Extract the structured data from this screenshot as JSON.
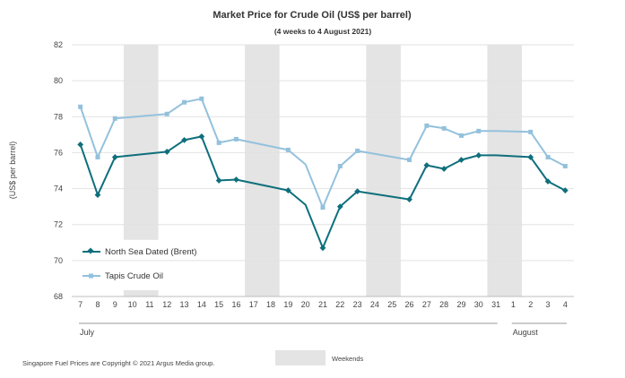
{
  "chart_data": {
    "type": "line",
    "title": "Market Price for Crude Oil  (US$  per barrel)",
    "subtitle": "(4 weeks to 4 August 2021)",
    "ylabel": "(US$ per barrel)",
    "ylim": [
      68,
      82
    ],
    "yticks": [
      68,
      70,
      72,
      74,
      76,
      78,
      80,
      82
    ],
    "grid": true,
    "legend_position": "bottom-left",
    "categories": [
      "7",
      "8",
      "9",
      "10",
      "11",
      "12",
      "13",
      "14",
      "15",
      "16",
      "17",
      "18",
      "19",
      "20",
      "21",
      "22",
      "23",
      "24",
      "25",
      "26",
      "27",
      "28",
      "29",
      "30",
      "31",
      "1",
      "2",
      "3",
      "4"
    ],
    "month_labels": [
      {
        "label": "July",
        "start": "7",
        "end": "31"
      },
      {
        "label": "August",
        "start": "1",
        "end": "4"
      }
    ],
    "weekend_bands": [
      [
        "10",
        "11"
      ],
      [
        "17",
        "18"
      ],
      [
        "24",
        "25"
      ],
      [
        "31",
        "1"
      ]
    ],
    "weekend_label": "Weekends",
    "series": [
      {
        "name": "North Sea Dated (Brent)",
        "color": "#0e6f7c",
        "marker": "diamond",
        "points": [
          [
            "7",
            76.45
          ],
          [
            "8",
            73.65
          ],
          [
            "9",
            75.75
          ],
          [
            "12",
            76.05
          ],
          [
            "13",
            76.7
          ],
          [
            "14",
            76.9
          ],
          [
            "15",
            74.45
          ],
          [
            "16",
            74.5
          ],
          [
            "19",
            73.9
          ],
          [
            "20",
            73.1
          ],
          [
            "21",
            70.7
          ],
          [
            "22",
            73.0
          ],
          [
            "23",
            73.85
          ],
          [
            "26",
            73.4
          ],
          [
            "27",
            75.3
          ],
          [
            "28",
            75.1
          ],
          [
            "29",
            75.6
          ],
          [
            "30",
            75.85
          ],
          [
            "31",
            75.85
          ],
          [
            "2",
            75.75
          ],
          [
            "3",
            74.4
          ],
          [
            "4",
            73.9
          ]
        ],
        "unmarked": [
          "20",
          "31"
        ]
      },
      {
        "name": "Tapis Crude Oil",
        "color": "#93c1dc",
        "marker": "square",
        "points": [
          [
            "7",
            78.55
          ],
          [
            "8",
            75.75
          ],
          [
            "9",
            77.9
          ],
          [
            "12",
            78.15
          ],
          [
            "13",
            78.8
          ],
          [
            "14",
            79.0
          ],
          [
            "15",
            76.55
          ],
          [
            "16",
            76.75
          ],
          [
            "19",
            76.15
          ],
          [
            "20",
            75.35
          ],
          [
            "21",
            72.95
          ],
          [
            "22",
            75.25
          ],
          [
            "23",
            76.1
          ],
          [
            "26",
            75.6
          ],
          [
            "27",
            77.5
          ],
          [
            "28",
            77.35
          ],
          [
            "29",
            76.95
          ],
          [
            "30",
            77.2
          ],
          [
            "31",
            77.2
          ],
          [
            "2",
            77.15
          ],
          [
            "3",
            75.75
          ],
          [
            "4",
            75.25
          ]
        ],
        "unmarked": [
          "20",
          "31"
        ]
      }
    ]
  },
  "footer": {
    "copyright": "Singapore  Fuel Prices are Copyright © 2021  Argus Media group."
  }
}
